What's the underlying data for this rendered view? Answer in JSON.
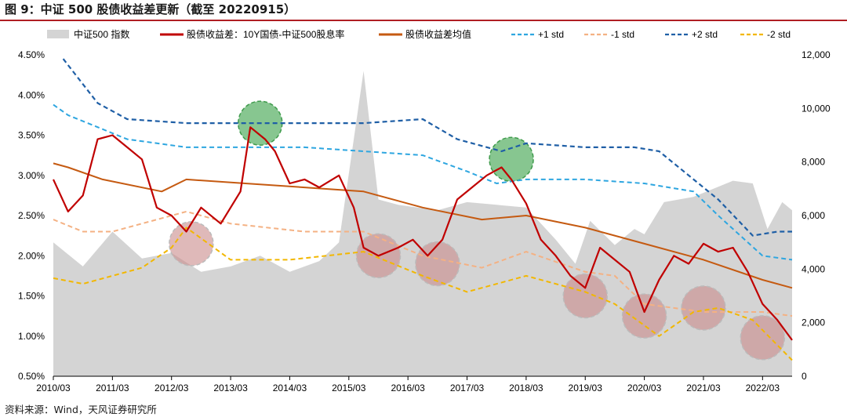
{
  "figure_title": "图 9：中证 500 股债收益差更新（截至 20220915）",
  "source_note": "资料来源：Wind，天风证券研究所",
  "colors": {
    "index_area": "#d4d4d4",
    "spread": "#c00000",
    "mean": "#c55a11",
    "plus1": "#2ea6e0",
    "minus1": "#f4b183",
    "plus2": "#1f5fa6",
    "minus2": "#f2b700",
    "green_circle": "#5fb36b",
    "red_circle": "#c98a8a"
  },
  "chart_data": {
    "type": "line",
    "x_ticks": [
      "2010/03",
      "2011/03",
      "2012/03",
      "2013/03",
      "2014/03",
      "2015/03",
      "2016/03",
      "2017/03",
      "2018/03",
      "2019/03",
      "2020/03",
      "2021/03",
      "2022/03"
    ],
    "x_range": [
      "2010/03",
      "2022/09"
    ],
    "y_left": {
      "ticks": [
        "0.50%",
        "1.00%",
        "1.50%",
        "2.00%",
        "2.50%",
        "3.00%",
        "3.50%",
        "4.00%",
        "4.50%"
      ],
      "range": [
        0.5,
        4.5
      ]
    },
    "y_right": {
      "ticks": [
        "0",
        "2,000",
        "4,000",
        "6,000",
        "8,000",
        "10,000",
        "12,000"
      ],
      "range": [
        0,
        12000
      ]
    },
    "legend": [
      {
        "label": "中证500 指数",
        "style": "area",
        "color": "#d4d4d4"
      },
      {
        "label": "股债收益差：10Y国债-中证500股息率",
        "style": "solid",
        "color": "#c00000"
      },
      {
        "label": "股债收益差均值",
        "style": "solid",
        "color": "#c55a11"
      },
      {
        "label": "+1 std",
        "style": "dash",
        "color": "#2ea6e0"
      },
      {
        "label": "-1 std",
        "style": "dash",
        "color": "#f4b183"
      },
      {
        "label": "+2 std",
        "style": "dash",
        "color": "#1f5fa6"
      },
      {
        "label": "-2 std",
        "style": "dash",
        "color": "#f2b700"
      }
    ],
    "legend_position": "top",
    "series": [
      {
        "name": "中证500 指数",
        "axis": "right",
        "x": [
          "2010/03",
          "2010/09",
          "2011/03",
          "2011/09",
          "2012/03",
          "2012/09",
          "2013/03",
          "2013/09",
          "2014/03",
          "2014/09",
          "2015/01",
          "2015/06",
          "2015/09",
          "2016/01",
          "2016/09",
          "2017/03",
          "2017/09",
          "2018/03",
          "2018/09",
          "2019/01",
          "2019/04",
          "2019/09",
          "2020/01",
          "2020/03",
          "2020/07",
          "2021/01",
          "2021/09",
          "2022/01",
          "2022/04",
          "2022/07",
          "2022/09"
        ],
        "y": [
          5000,
          4100,
          5400,
          4400,
          4600,
          3900,
          4100,
          4500,
          3900,
          4300,
          5000,
          11400,
          6600,
          6400,
          6200,
          6500,
          6400,
          6300,
          5100,
          4200,
          5800,
          4900,
          5500,
          5300,
          6500,
          6700,
          7300,
          7200,
          5500,
          6500,
          6200
        ]
      },
      {
        "name": "股债收益差：10Y国债-中证500股息率",
        "axis": "left",
        "x": [
          "2010/03",
          "2010/06",
          "2010/09",
          "2010/12",
          "2011/03",
          "2011/06",
          "2011/09",
          "2011/12",
          "2012/03",
          "2012/06",
          "2012/09",
          "2013/01",
          "2013/05",
          "2013/07",
          "2013/10",
          "2013/12",
          "2014/03",
          "2014/06",
          "2014/09",
          "2015/01",
          "2015/04",
          "2015/06",
          "2015/09",
          "2016/01",
          "2016/04",
          "2016/07",
          "2016/10",
          "2017/01",
          "2017/04",
          "2017/07",
          "2017/10",
          "2017/12",
          "2018/03",
          "2018/06",
          "2018/09",
          "2018/12",
          "2019/03",
          "2019/06",
          "2019/09",
          "2019/12",
          "2020/03",
          "2020/06",
          "2020/09",
          "2020/12",
          "2021/03",
          "2021/06",
          "2021/09",
          "2021/12",
          "2022/03",
          "2022/06",
          "2022/09"
        ],
        "y": [
          2.95,
          2.55,
          2.75,
          3.45,
          3.5,
          3.35,
          3.2,
          2.6,
          2.5,
          2.3,
          2.6,
          2.4,
          2.8,
          3.6,
          3.45,
          3.3,
          2.9,
          2.95,
          2.85,
          3.0,
          2.6,
          2.1,
          2.0,
          2.1,
          2.2,
          2.0,
          2.2,
          2.7,
          2.85,
          3.0,
          3.1,
          2.95,
          2.65,
          2.2,
          2.0,
          1.75,
          1.6,
          2.1,
          1.95,
          1.8,
          1.3,
          1.7,
          2.0,
          1.9,
          2.15,
          2.05,
          2.1,
          1.8,
          1.4,
          1.2,
          0.95
        ]
      },
      {
        "name": "股债收益差均值",
        "axis": "left",
        "x": [
          "2010/03",
          "2010/06",
          "2011/01",
          "2012/01",
          "2012/06",
          "2013/06",
          "2014/06",
          "2015/06",
          "2016/06",
          "2017/06",
          "2018/03",
          "2019/03",
          "2020/03",
          "2021/03",
          "2022/03",
          "2022/09"
        ],
        "y": [
          3.15,
          3.1,
          2.95,
          2.8,
          2.95,
          2.9,
          2.85,
          2.8,
          2.6,
          2.45,
          2.5,
          2.35,
          2.15,
          1.95,
          1.7,
          1.6
        ]
      },
      {
        "name": "+1 std",
        "axis": "left",
        "x": [
          "2010/03",
          "2010/06",
          "2011/06",
          "2012/06",
          "2013/06",
          "2014/06",
          "2015/06",
          "2016/06",
          "2017/03",
          "2017/09",
          "2018/03",
          "2019/03",
          "2020/03",
          "2021/01",
          "2021/06",
          "2022/03",
          "2022/09"
        ],
        "y": [
          3.88,
          3.75,
          3.45,
          3.35,
          3.35,
          3.35,
          3.3,
          3.25,
          3.05,
          2.9,
          2.95,
          2.95,
          2.9,
          2.8,
          2.5,
          2.0,
          1.95
        ]
      },
      {
        "name": "-1 std",
        "axis": "left",
        "x": [
          "2010/03",
          "2010/09",
          "2011/03",
          "2012/06",
          "2013/03",
          "2014/06",
          "2015/06",
          "2016/06",
          "2017/06",
          "2018/03",
          "2019/03",
          "2019/09",
          "2020/03",
          "2021/03",
          "2022/03",
          "2022/09"
        ],
        "y": [
          2.45,
          2.3,
          2.3,
          2.55,
          2.4,
          2.3,
          2.3,
          2.0,
          1.85,
          2.05,
          1.8,
          1.75,
          1.4,
          1.3,
          1.3,
          1.25
        ]
      },
      {
        "name": "+2 std",
        "axis": "left",
        "x": [
          "2010/05",
          "2010/12",
          "2011/06",
          "2012/06",
          "2013/06",
          "2014/06",
          "2015/06",
          "2016/06",
          "2017/01",
          "2017/10",
          "2018/03",
          "2019/03",
          "2020/01",
          "2020/06",
          "2021/06",
          "2022/01",
          "2022/06",
          "2022/09"
        ],
        "y": [
          4.45,
          3.9,
          3.7,
          3.65,
          3.65,
          3.65,
          3.65,
          3.7,
          3.45,
          3.3,
          3.4,
          3.35,
          3.35,
          3.3,
          2.7,
          2.25,
          2.3,
          2.3
        ]
      },
      {
        "name": "-2 std",
        "axis": "left",
        "x": [
          "2010/03",
          "2010/09",
          "2011/03",
          "2011/09",
          "2012/03",
          "2012/06",
          "2013/03",
          "2014/03",
          "2015/06",
          "2016/06",
          "2017/03",
          "2018/03",
          "2019/03",
          "2019/09",
          "2020/06",
          "2021/01",
          "2021/06",
          "2022/01",
          "2022/09"
        ],
        "y": [
          1.72,
          1.65,
          1.75,
          1.85,
          2.1,
          2.35,
          1.95,
          1.95,
          2.05,
          1.75,
          1.55,
          1.75,
          1.55,
          1.4,
          1.0,
          1.3,
          1.35,
          1.2,
          0.7
        ]
      }
    ],
    "annotations": [
      {
        "shape": "circle",
        "color": "green",
        "x": "2013/09",
        "y": 3.65
      },
      {
        "shape": "circle",
        "color": "green",
        "x": "2017/12",
        "y": 3.2
      },
      {
        "shape": "circle",
        "color": "red",
        "x": "2012/07",
        "y": 2.15
      },
      {
        "shape": "circle",
        "color": "red",
        "x": "2015/09",
        "y": 2.0
      },
      {
        "shape": "circle",
        "color": "red",
        "x": "2016/09",
        "y": 1.9
      },
      {
        "shape": "circle",
        "color": "red",
        "x": "2019/03",
        "y": 1.5
      },
      {
        "shape": "circle",
        "color": "red",
        "x": "2020/03",
        "y": 1.25
      },
      {
        "shape": "circle",
        "color": "red",
        "x": "2021/03",
        "y": 1.35
      },
      {
        "shape": "circle",
        "color": "red",
        "x": "2022/03",
        "y": 0.98
      }
    ]
  }
}
